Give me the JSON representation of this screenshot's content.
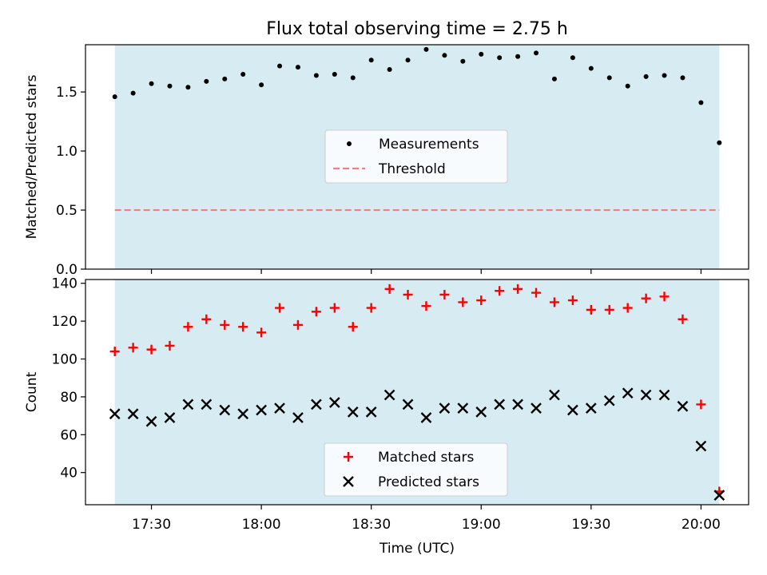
{
  "title": "Flux total observing time = 2.75 h",
  "colors": {
    "shade": "#add8e6",
    "measurement": "#000000",
    "threshold": "#f08080",
    "matched": "#ff0000",
    "predicted": "#000000"
  },
  "chart_data": [
    {
      "type": "scatter",
      "panel": "top",
      "ylabel": "Matched/Predicted stars",
      "xlabel": "",
      "ylim": [
        0,
        1.9
      ],
      "yticks": [
        0.0,
        0.5,
        1.0,
        1.5
      ],
      "ytick_labels": [
        "0.0",
        "0.5",
        "1.0",
        "1.5"
      ],
      "shaded_region": [
        "17:20",
        "20:05"
      ],
      "legend": {
        "position": "center",
        "entries": [
          "Measurements",
          "Threshold"
        ]
      },
      "threshold": {
        "name": "Threshold",
        "value": 0.5,
        "style": "dashed"
      },
      "series": [
        {
          "name": "Measurements",
          "marker": "dot",
          "x": [
            "17:20",
            "17:25",
            "17:30",
            "17:35",
            "17:40",
            "17:45",
            "17:50",
            "17:55",
            "18:00",
            "18:05",
            "18:10",
            "18:15",
            "18:20",
            "18:25",
            "18:30",
            "18:35",
            "18:40",
            "18:45",
            "18:50",
            "18:55",
            "19:00",
            "19:05",
            "19:10",
            "19:15",
            "19:20",
            "19:25",
            "19:30",
            "19:35",
            "19:40",
            "19:45",
            "19:50",
            "19:55",
            "20:00",
            "20:05"
          ],
          "values": [
            1.46,
            1.49,
            1.57,
            1.55,
            1.54,
            1.59,
            1.61,
            1.65,
            1.56,
            1.72,
            1.71,
            1.64,
            1.65,
            1.62,
            1.77,
            1.69,
            1.77,
            1.86,
            1.81,
            1.76,
            1.82,
            1.79,
            1.8,
            1.83,
            1.61,
            1.79,
            1.7,
            1.62,
            1.55,
            1.63,
            1.64,
            1.62,
            1.41,
            1.07
          ]
        }
      ]
    },
    {
      "type": "scatter",
      "panel": "bottom",
      "ylabel": "Count",
      "xlabel": "Time (UTC)",
      "ylim": [
        23,
        142
      ],
      "yticks": [
        40,
        60,
        80,
        100,
        120,
        140
      ],
      "ytick_labels": [
        "40",
        "60",
        "80",
        "100",
        "120",
        "140"
      ],
      "xticks": [
        "17:30",
        "18:00",
        "18:30",
        "19:00",
        "19:30",
        "20:00"
      ],
      "shaded_region": [
        "17:20",
        "20:05"
      ],
      "legend": {
        "position": "lower center",
        "entries": [
          "Matched stars",
          "Predicted stars"
        ]
      },
      "series": [
        {
          "name": "Matched stars",
          "marker": "plus",
          "x": [
            "17:20",
            "17:25",
            "17:30",
            "17:35",
            "17:40",
            "17:45",
            "17:50",
            "17:55",
            "18:00",
            "18:05",
            "18:10",
            "18:15",
            "18:20",
            "18:25",
            "18:30",
            "18:35",
            "18:40",
            "18:45",
            "18:50",
            "18:55",
            "19:00",
            "19:05",
            "19:10",
            "19:15",
            "19:20",
            "19:25",
            "19:30",
            "19:35",
            "19:40",
            "19:45",
            "19:50",
            "19:55",
            "20:00",
            "20:05"
          ],
          "values": [
            104,
            106,
            105,
            107,
            117,
            121,
            118,
            117,
            114,
            127,
            118,
            125,
            127,
            117,
            127,
            137,
            134,
            128,
            134,
            130,
            131,
            136,
            137,
            135,
            130,
            131,
            126,
            126,
            127,
            132,
            133,
            121,
            76,
            30
          ]
        },
        {
          "name": "Predicted stars",
          "marker": "x",
          "x": [
            "17:20",
            "17:25",
            "17:30",
            "17:35",
            "17:40",
            "17:45",
            "17:50",
            "17:55",
            "18:00",
            "18:05",
            "18:10",
            "18:15",
            "18:20",
            "18:25",
            "18:30",
            "18:35",
            "18:40",
            "18:45",
            "18:50",
            "18:55",
            "19:00",
            "19:05",
            "19:10",
            "19:15",
            "19:20",
            "19:25",
            "19:30",
            "19:35",
            "19:40",
            "19:45",
            "19:50",
            "19:55",
            "20:00",
            "20:05"
          ],
          "values": [
            71,
            71,
            67,
            69,
            76,
            76,
            73,
            71,
            73,
            74,
            69,
            76,
            77,
            72,
            72,
            81,
            76,
            69,
            74,
            74,
            72,
            76,
            76,
            74,
            81,
            73,
            74,
            78,
            82,
            81,
            81,
            75,
            54,
            28
          ]
        }
      ]
    }
  ]
}
